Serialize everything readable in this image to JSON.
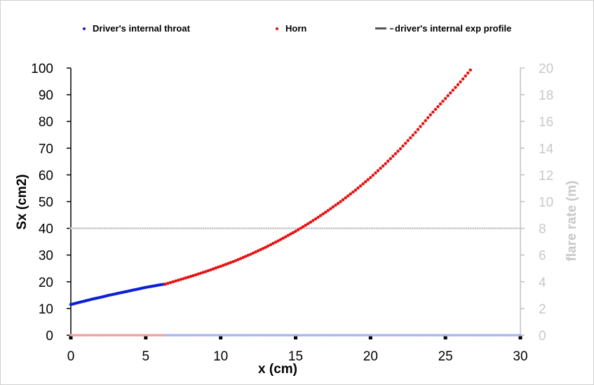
{
  "chart_data": {
    "type": "scatter",
    "xlabel": "x (cm)",
    "ylabel": "Sx (cm2)",
    "y2label": "flare rate (m)",
    "xlim": [
      0,
      30
    ],
    "ylim": [
      0,
      100
    ],
    "y2lim": [
      0,
      20
    ],
    "x_ticks": [
      0,
      5,
      10,
      15,
      20,
      25,
      30
    ],
    "y_ticks": [
      0,
      10,
      20,
      30,
      40,
      50,
      60,
      70,
      80,
      90,
      100
    ],
    "y2_ticks": [
      0,
      2,
      4,
      6,
      8,
      10,
      12,
      14,
      16,
      18,
      20
    ],
    "legend_position": "top",
    "grid": false,
    "colors": {
      "throat": "#0a1fd6",
      "horn": "#e60f0f",
      "exp_profile": "#555555",
      "flare_rate_line": "#c8c8c8",
      "throat_flare": "#aab4f0",
      "horn_flare": "#f0a0a0"
    },
    "series": [
      {
        "name": "Driver's internal throat",
        "axis": "left",
        "marker": "dot",
        "x": [
          0.0,
          0.5,
          1.0,
          1.5,
          2.0,
          2.5,
          3.0,
          3.5,
          4.0,
          4.5,
          5.0,
          5.5,
          6.0,
          6.3
        ],
        "y": [
          11.5,
          12.2,
          12.9,
          13.6,
          14.2,
          14.9,
          15.5,
          16.1,
          16.7,
          17.3,
          17.9,
          18.4,
          18.9,
          19.1
        ]
      },
      {
        "name": "Horn",
        "axis": "left",
        "marker": "dot",
        "x": [
          6.3,
          7,
          8,
          9,
          10,
          11,
          12,
          13,
          14,
          15,
          16,
          17,
          18,
          19,
          20,
          21,
          22,
          23,
          24,
          25,
          26,
          27
        ],
        "y": [
          19.1,
          20.3,
          22.0,
          23.8,
          25.8,
          27.9,
          30.3,
          32.9,
          35.8,
          38.9,
          42.3,
          46.0,
          50.0,
          54.3,
          59.0,
          64.2,
          69.8,
          75.9,
          82.5,
          88.6,
          94.8,
          101.5
        ]
      },
      {
        "name": "driver's internal exp profile",
        "axis": "left",
        "marker": "line",
        "x": [],
        "y": []
      },
      {
        "name": "",
        "axis": "right",
        "marker": "dot",
        "x": [
          0,
          30
        ],
        "y": [
          8,
          8
        ]
      },
      {
        "name": "",
        "axis": "right",
        "marker": "dot",
        "x": [
          0,
          6.3
        ],
        "y": [
          0,
          0
        ]
      },
      {
        "name": "",
        "axis": "right",
        "marker": "dot",
        "x": [
          6.3,
          30
        ],
        "y": [
          0,
          0
        ]
      }
    ],
    "legend": [
      {
        "label": "Driver's internal throat",
        "kind": "dot",
        "color": "#0a1fd6"
      },
      {
        "label": "Horn",
        "kind": "dot",
        "color": "#e60f0f"
      },
      {
        "label": "driver's internal exp profile",
        "kind": "dash",
        "color": "#555555"
      }
    ]
  }
}
